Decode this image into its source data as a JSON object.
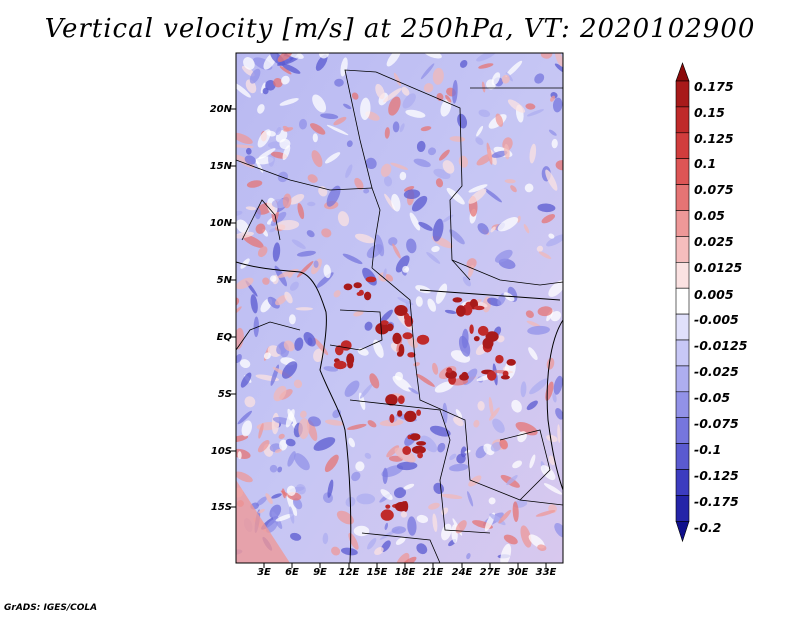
{
  "title": "Vertical velocity [m/s] at 250hPa, VT: 2020102900",
  "footer": "GrADS: IGES/COLA",
  "lat_labels": [
    "20N",
    "15N",
    "10N",
    "5N",
    "EQ",
    "5S",
    "10S",
    "15S"
  ],
  "lon_labels": [
    "3E",
    "6E",
    "9E",
    "12E",
    "15E",
    "18E",
    "21E",
    "24E",
    "27E",
    "30E",
    "33E"
  ],
  "colorbar": {
    "labels": [
      "0.175",
      "0.15",
      "0.125",
      "0.1",
      "0.075",
      "0.05",
      "0.025",
      "0.0125",
      "0.005",
      "-0.005",
      "-0.0125",
      "-0.025",
      "-0.05",
      "-0.075",
      "-0.1",
      "-0.125",
      "-0.175",
      "-0.2"
    ],
    "colors": [
      "#8b0a0a",
      "#a81a1a",
      "#c02a2a",
      "#d13d3d",
      "#dd5555",
      "#e57474",
      "#ee9898",
      "#f5bdbd",
      "#fbe2e2",
      "#ffffff",
      "#e0e0fb",
      "#c8c8f6",
      "#aeaef0",
      "#9292e8",
      "#7676dd",
      "#5a5ad0",
      "#3c3cc0",
      "#2424a8",
      "#10108c"
    ]
  }
}
